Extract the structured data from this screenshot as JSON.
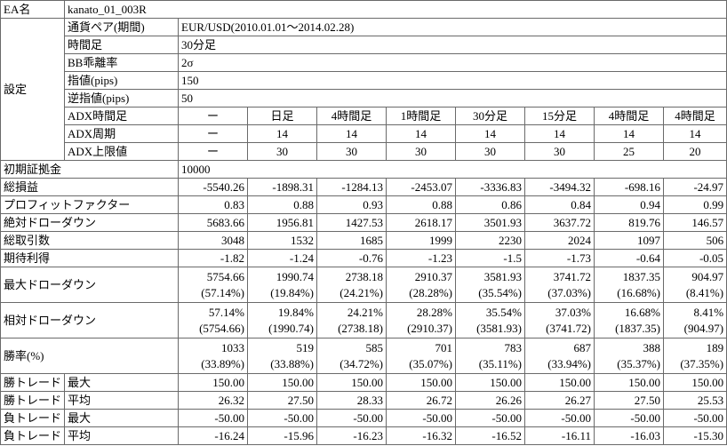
{
  "ea": {
    "label": "EA名",
    "value": "kanato_01_003R"
  },
  "settings": {
    "label": "設定",
    "rows": [
      [
        "通貨ペア(期間)",
        "EUR/USD(2010.01.01～2014.02.28)"
      ],
      [
        "時間足",
        "30分足"
      ],
      [
        "BB乖離率",
        "2σ"
      ],
      [
        "指値(pips)",
        "150"
      ],
      [
        "逆指値(pips)",
        "50"
      ]
    ],
    "adx": [
      {
        "label": "ADX時間足",
        "values": [
          "ー",
          "日足",
          "4時間足",
          "1時間足",
          "30分足",
          "15分足",
          "4時間足",
          "4時間足"
        ]
      },
      {
        "label": "ADX周期",
        "values": [
          "ー",
          "14",
          "14",
          "14",
          "14",
          "14",
          "14",
          "14"
        ]
      },
      {
        "label": "ADX上限値",
        "values": [
          "ー",
          "30",
          "30",
          "30",
          "30",
          "30",
          "25",
          "20"
        ]
      }
    ]
  },
  "initial_margin": {
    "label": "初期証拠金",
    "value": "10000"
  },
  "results": [
    {
      "label": "総損益",
      "values": [
        "-5540.26",
        "-1898.31",
        "-1284.13",
        "-2453.07",
        "-3336.83",
        "-3494.32",
        "-698.16",
        "-24.97"
      ]
    },
    {
      "label": "プロフィットファクター",
      "values": [
        "0.83",
        "0.88",
        "0.93",
        "0.88",
        "0.86",
        "0.84",
        "0.94",
        "0.99"
      ]
    },
    {
      "label": "絶対ドローダウン",
      "values": [
        "5683.66",
        "1956.81",
        "1427.53",
        "2618.17",
        "3501.93",
        "3637.72",
        "819.76",
        "146.57"
      ]
    },
    {
      "label": "総取引数",
      "values": [
        "3048",
        "1532",
        "1685",
        "1999",
        "2230",
        "2024",
        "1097",
        "506"
      ]
    },
    {
      "label": "期待利得",
      "values": [
        "-1.82",
        "-1.24",
        "-0.76",
        "-1.23",
        "-1.5",
        "-1.73",
        "-0.64",
        "-0.05"
      ]
    },
    {
      "label": "最大ドローダウン",
      "values": [
        "5754.66",
        "1990.74",
        "2738.18",
        "2910.37",
        "3581.93",
        "3741.72",
        "1837.35",
        "904.97"
      ],
      "sub": [
        "(57.14%)",
        "(19.84%)",
        "(24.21%)",
        "(28.28%)",
        "(35.54%)",
        "(37.03%)",
        "(16.68%)",
        "(8.41%)"
      ]
    },
    {
      "label": "相対ドローダウン",
      "values": [
        "57.14%",
        "19.84%",
        "24.21%",
        "28.28%",
        "35.54%",
        "37.03%",
        "16.68%",
        "8.41%"
      ],
      "sub": [
        "(5754.66)",
        "(1990.74)",
        "(2738.18)",
        "(2910.37)",
        "(3581.93)",
        "(3741.72)",
        "(1837.35)",
        "(904.97)"
      ]
    },
    {
      "label": "勝率(%)",
      "values": [
        "1033",
        "519",
        "585",
        "701",
        "783",
        "687",
        "388",
        "189"
      ],
      "sub": [
        "(33.89%)",
        "(33.88%)",
        "(34.72%)",
        "(35.07%)",
        "(35.11%)",
        "(33.94%)",
        "(35.37%)",
        "(37.35%)"
      ]
    }
  ],
  "trades": [
    [
      "勝トレード",
      "最大",
      [
        "150.00",
        "150.00",
        "150.00",
        "150.00",
        "150.00",
        "150.00",
        "150.00",
        "150.00"
      ]
    ],
    [
      "勝トレード",
      "平均",
      [
        "26.32",
        "27.50",
        "28.33",
        "26.72",
        "26.26",
        "26.27",
        "27.50",
        "25.53"
      ]
    ],
    [
      "負トレード",
      "最大",
      [
        "-50.00",
        "-50.00",
        "-50.00",
        "-50.00",
        "-50.00",
        "-50.00",
        "-50.00",
        "-50.00"
      ]
    ],
    [
      "負トレード",
      "平均",
      [
        "-16.24",
        "-15.96",
        "-16.23",
        "-16.32",
        "-16.52",
        "-16.11",
        "-16.03",
        "-15.30"
      ]
    ]
  ]
}
